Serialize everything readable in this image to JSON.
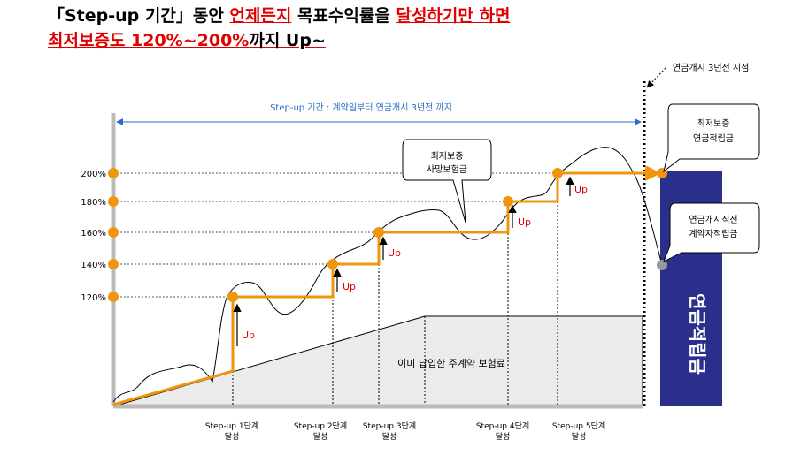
{
  "headline": {
    "l1_a": "「Step-up 기간」동안 ",
    "l1_b": "언제든지",
    "l1_c": " 목표수익률을 ",
    "l1_d": "달성하기만 하면",
    "l2_a": "최저보증도 120%~200%",
    "l2_b": "까지 Up~"
  },
  "annotations": {
    "period": "Step-up 기간 : 계약일부터 연금개시 3년전 까지",
    "pension_start": "연금개시 3년전 시점",
    "bubble_min_guarantee_death_1": "최저보증",
    "bubble_min_guarantee_death_2": "사망보험금",
    "bubble_min_guarantee_annuity_1": "최저보증",
    "bubble_min_guarantee_annuity_2": "연금적립금",
    "bubble_pre_annuity_1": "연금개시직전",
    "bubble_pre_annuity_2": "계약자적립금",
    "premium_area": "이미 납입한 주계약 보험료",
    "annuity_bar": "연금적립금",
    "up": "Up"
  },
  "colors": {
    "orange": "#f0960e",
    "navy": "#2b2f8c",
    "red": "#e00000",
    "premium_fill": "#ebebeb"
  },
  "chart_data": {
    "type": "line",
    "ylabel": "",
    "yticks": [
      "120%",
      "140%",
      "160%",
      "180%",
      "200%"
    ],
    "steps": [
      {
        "label_1": "Step-up 1단계",
        "label_2": "달성",
        "level": 120
      },
      {
        "label_1": "Step-up 2단계",
        "label_2": "달성",
        "level": 140
      },
      {
        "label_1": "Step-up 3단계",
        "label_2": "달성",
        "level": 160
      },
      {
        "label_1": "Step-up 4단계",
        "label_2": "달성",
        "level": 180
      },
      {
        "label_1": "Step-up 5단계",
        "label_2": "달성",
        "level": 200
      }
    ],
    "series": [
      {
        "values": [
          120,
          140,
          160,
          180,
          200
        ]
      }
    ]
  }
}
